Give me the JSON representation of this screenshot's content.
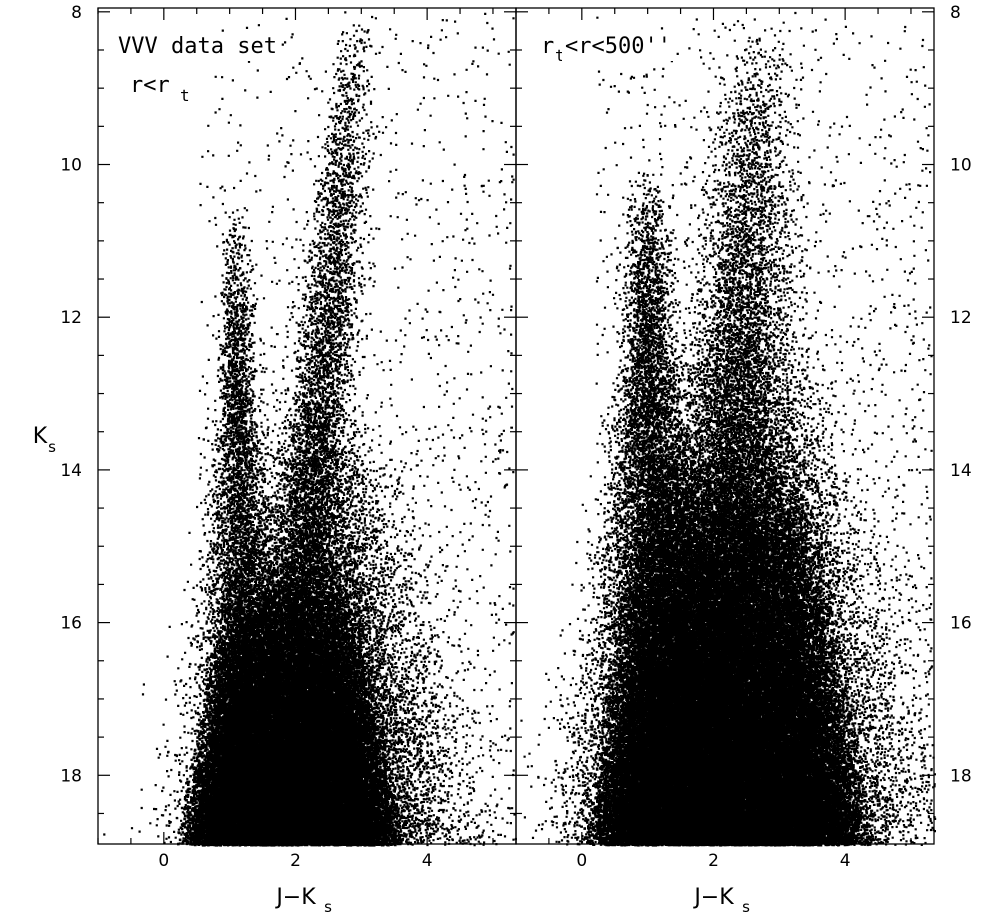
{
  "chart_data": [
    {
      "type": "scatter",
      "panel": "left",
      "annotations": [
        "VVV data set",
        "r<r",
        "t"
      ],
      "xlabel": "J−K",
      "xlabel_sub": "s",
      "ylabel": "K",
      "ylabel_sub": "s",
      "xlim": [
        -1.0,
        5.35
      ],
      "ylim": [
        18.9,
        7.95
      ],
      "y_inverted": true,
      "x_ticks": [
        0,
        2,
        4
      ],
      "y_ticks": [
        8,
        10,
        12,
        14,
        16,
        18
      ],
      "y_tick_labels_side": "left",
      "color": "#000000",
      "density_model": {
        "main_sequence_turnoff": {
          "x_center": 1.1,
          "x_center_faint": 1.3,
          "brightest_Ks": 12.5,
          "sigma_x": 0.25
        },
        "giant_branch": {
          "tip_x": 2.95,
          "tip_Ks": 8.0,
          "base_x": 1.9,
          "base_Ks": 17.0,
          "sigma_x": 0.22
        },
        "field_disk_red": {
          "x_center": 2.5,
          "sigma_x": 0.75,
          "Ks_range": [
            13.0,
            18.9
          ]
        },
        "faint_blob": {
          "x_range": [
            0.3,
            3.8
          ],
          "Ks_range": [
            15.0,
            18.9
          ]
        },
        "sparse_scatter": {
          "x_range": [
            0.5,
            5.3
          ],
          "Ks_range": [
            8.0,
            18.9
          ]
        }
      }
    },
    {
      "type": "scatter",
      "panel": "right",
      "annotations": [
        "r",
        "t",
        "<r<500''"
      ],
      "xlabel": "J−K",
      "xlabel_sub": "s",
      "xlim": [
        -1.0,
        5.35
      ],
      "ylim": [
        18.9,
        7.95
      ],
      "y_inverted": true,
      "x_ticks": [
        0,
        2,
        4
      ],
      "y_ticks": [
        8,
        10,
        12,
        14,
        16,
        18
      ],
      "y_tick_labels_side": "right",
      "color": "#000000",
      "density_model": {
        "main_sequence_turnoff": {
          "x_center": 1.0,
          "x_center_faint": 1.2,
          "brightest_Ks": 12.0,
          "sigma_x": 0.35
        },
        "giant_branch": {
          "tip_x": 2.7,
          "tip_Ks": 8.3,
          "base_x": 2.0,
          "base_Ks": 17.0,
          "sigma_x": 0.38
        },
        "field_disk_red": {
          "x_center": 2.6,
          "sigma_x": 0.9,
          "Ks_range": [
            12.0,
            18.9
          ]
        },
        "faint_blob": {
          "x_range": [
            0.1,
            4.6
          ],
          "Ks_range": [
            13.5,
            18.9
          ]
        },
        "sparse_scatter": {
          "x_range": [
            0.2,
            5.3
          ],
          "Ks_range": [
            8.0,
            18.9
          ]
        }
      }
    }
  ]
}
